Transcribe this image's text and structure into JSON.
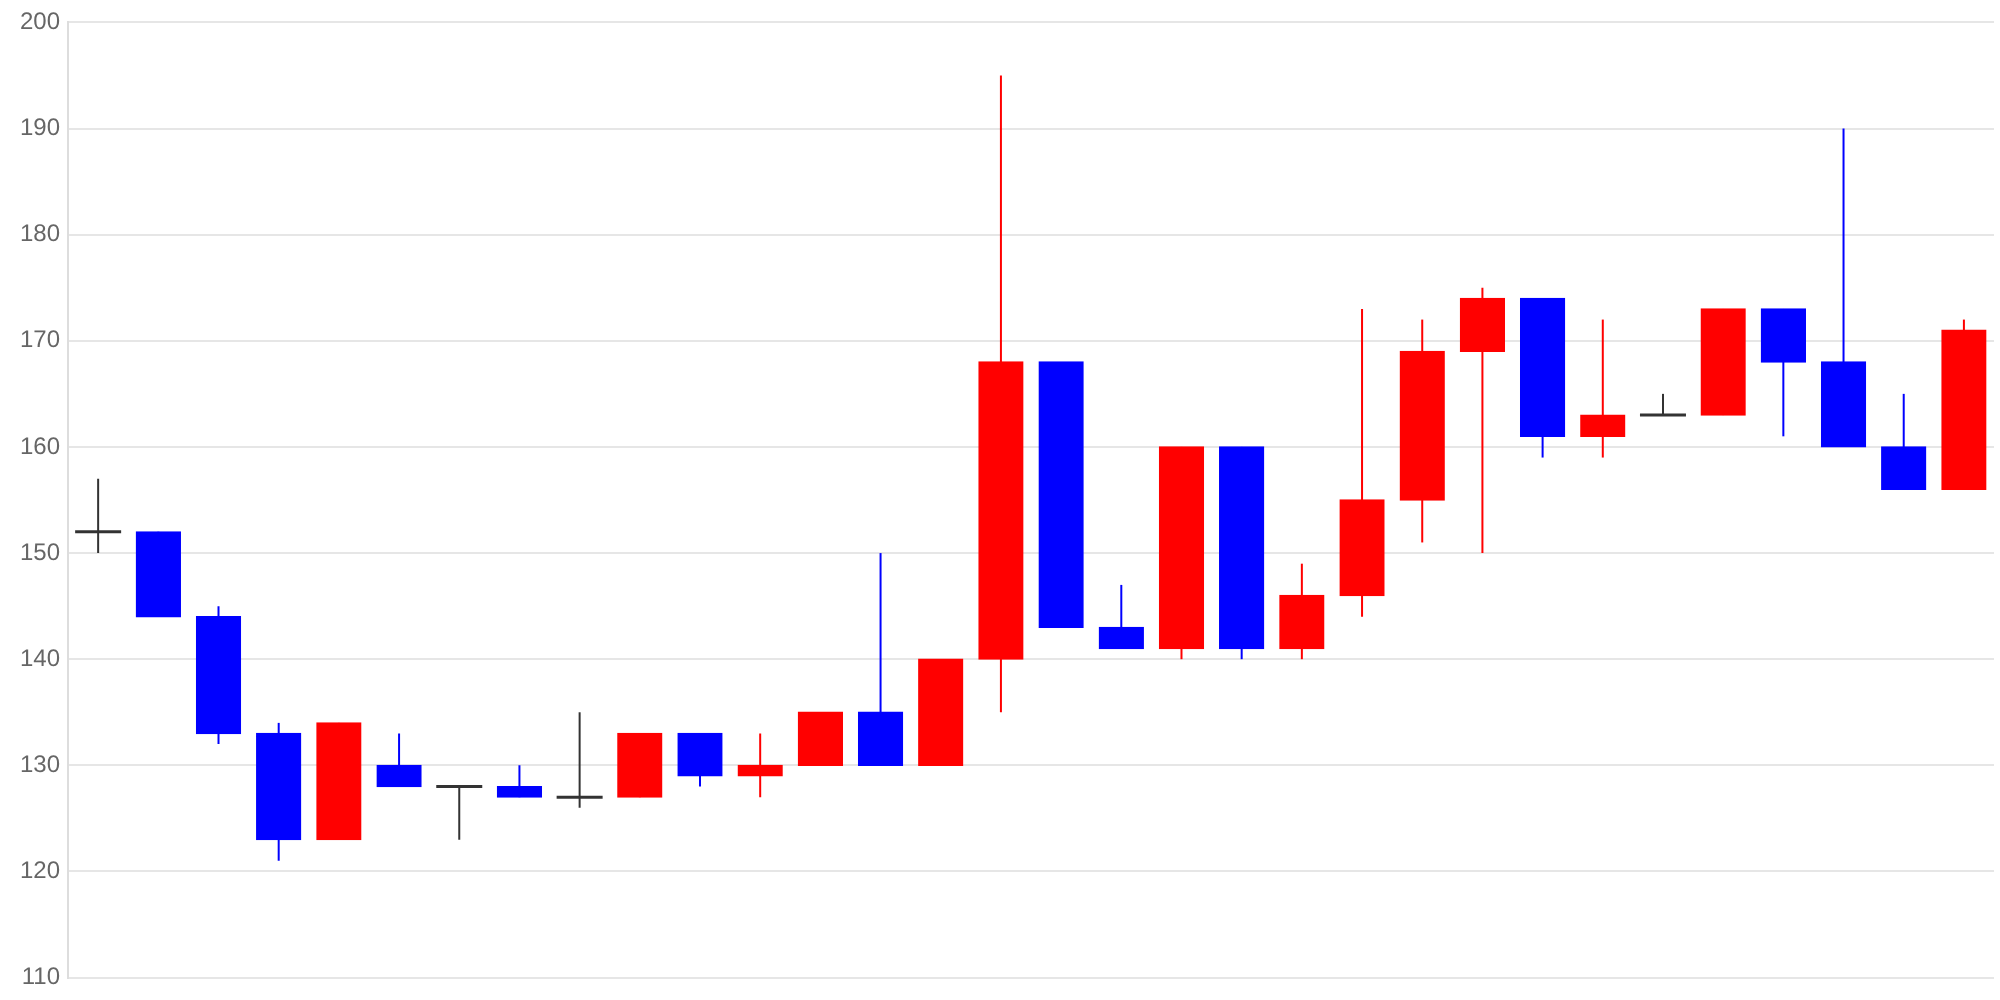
{
  "chart_data": {
    "type": "candlestick",
    "categories": [
      null,
      null,
      null,
      null,
      null,
      null,
      null,
      null,
      null,
      null,
      null,
      null,
      null,
      null,
      null,
      null,
      null,
      null,
      null,
      null,
      null,
      null,
      null,
      null,
      null,
      null,
      null,
      null,
      null,
      null,
      null,
      null
    ],
    "ohlc": [
      [
        152,
        157,
        150,
        152
      ],
      [
        152,
        152,
        144,
        144
      ],
      [
        144,
        145,
        132,
        133
      ],
      [
        133,
        134,
        121,
        123
      ],
      [
        123,
        134,
        123,
        134
      ],
      [
        130,
        133,
        128,
        128
      ],
      [
        128,
        128,
        123,
        128
      ],
      [
        128,
        130,
        127,
        127
      ],
      [
        127,
        135,
        126,
        127
      ],
      [
        127,
        133,
        127,
        133
      ],
      [
        133,
        133,
        128,
        129
      ],
      [
        129,
        133,
        127,
        130
      ],
      [
        130,
        135,
        130,
        135
      ],
      [
        135,
        150,
        130,
        130
      ],
      [
        130,
        140,
        130,
        140
      ],
      [
        140,
        195,
        135,
        168
      ],
      [
        168,
        168,
        143,
        143
      ],
      [
        143,
        147,
        141,
        141
      ],
      [
        141,
        160,
        140,
        160
      ],
      [
        160,
        160,
        140,
        141
      ],
      [
        141,
        149,
        140,
        146
      ],
      [
        146,
        173,
        144,
        155
      ],
      [
        155,
        172,
        151,
        169
      ],
      [
        169,
        175,
        150,
        174
      ],
      [
        174,
        174,
        159,
        161
      ],
      [
        161,
        172,
        159,
        163
      ],
      [
        163,
        165,
        163,
        163
      ],
      [
        163,
        173,
        163,
        173
      ],
      [
        173,
        173,
        161,
        168
      ],
      [
        168,
        190,
        160,
        160
      ],
      [
        160,
        165,
        156,
        156
      ],
      [
        156,
        172,
        156,
        171
      ]
    ],
    "colors": [
      "#333333",
      "#0000ff",
      "#0000ff",
      "#0000ff",
      "#ff0000",
      "#0000ff",
      "#333333",
      "#0000ff",
      "#333333",
      "#ff0000",
      "#0000ff",
      "#ff0000",
      "#ff0000",
      "#0000ff",
      "#ff0000",
      "#ff0000",
      "#0000ff",
      "#0000ff",
      "#ff0000",
      "#0000ff",
      "#ff0000",
      "#ff0000",
      "#ff0000",
      "#ff0000",
      "#0000ff",
      "#ff0000",
      "#333333",
      "#ff0000",
      "#0000ff",
      "#0000ff",
      "#0000ff",
      "#ff0000"
    ],
    "ylim": [
      110,
      200
    ],
    "yticks": [
      110,
      120,
      130,
      140,
      150,
      160,
      170,
      180,
      190,
      200
    ],
    "grid": "y",
    "tick_labels": "y"
  }
}
